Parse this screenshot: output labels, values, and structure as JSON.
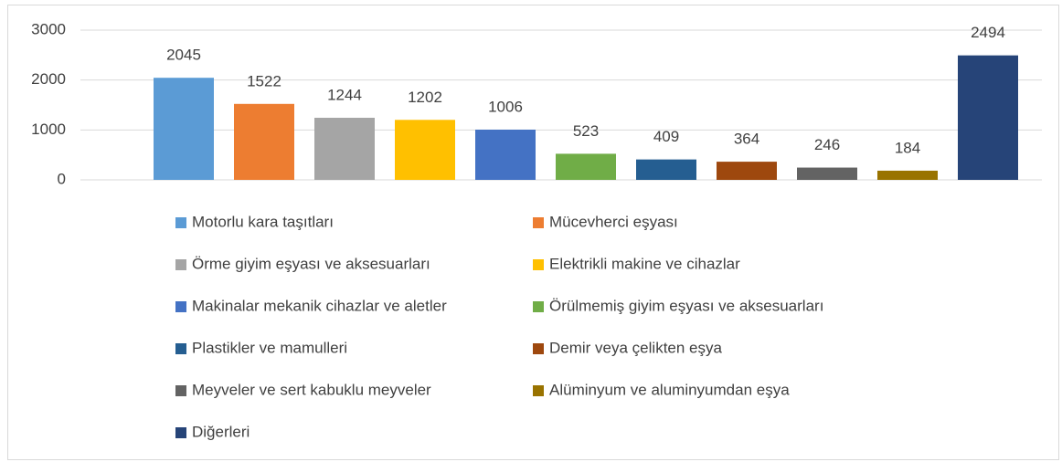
{
  "chart_data": {
    "type": "bar",
    "categories": [
      "Motorlu kara taşıtları",
      "Mücevherci eşyası",
      "Örme giyim eşyası ve aksesuarları",
      "Elektrikli makine ve cihazlar",
      "Makinalar mekanik cihazlar ve aletler",
      "Örülmemiş giyim eşyası ve aksesuarları",
      "Plastikler ve mamulleri",
      "Demir veya çelikten eşya",
      "Meyveler ve sert kabuklu meyveler",
      "Alüminyum ve aluminyumdan eşya",
      "Diğerleri"
    ],
    "values": [
      2045,
      1522,
      1244,
      1202,
      1006,
      523,
      409,
      364,
      246,
      184,
      2494
    ],
    "colors": [
      "#5b9bd5",
      "#ed7d31",
      "#a5a5a5",
      "#ffc000",
      "#4472c4",
      "#70ad47",
      "#255e91",
      "#9e480e",
      "#636363",
      "#997300",
      "#264478"
    ],
    "ylim": [
      0,
      3000
    ],
    "yticks": [
      0,
      1000,
      2000,
      3000
    ],
    "grid": true,
    "legend": "bottom"
  }
}
